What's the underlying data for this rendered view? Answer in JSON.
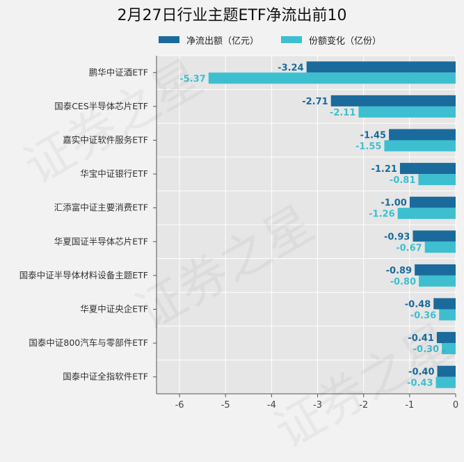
{
  "chart_data": {
    "type": "bar",
    "orientation": "horizontal",
    "title": "2月27日行业主题ETF净流出前10",
    "categories": [
      "鹏华中证酒ETF",
      "国泰CES半导体芯片ETF",
      "嘉实中证软件服务ETF",
      "华宝中证银行ETF",
      "汇添富中证主要消费ETF",
      "华夏国证半导体芯片ETF",
      "国泰中证半导体材料设备主题ETF",
      "华夏中证央企ETF",
      "国泰中证800汽车与零部件ETF",
      "国泰中证全指软件ETF"
    ],
    "series": [
      {
        "name": "净流出额（亿元）",
        "color": "#1a6b9c",
        "values": [
          -3.24,
          -2.71,
          -1.45,
          -1.21,
          -1.0,
          -0.93,
          -0.89,
          -0.48,
          -0.41,
          -0.4
        ],
        "labels": [
          "-3.24",
          "-2.71",
          "-1.45",
          "-1.21",
          "-1.00",
          "-0.93",
          "-0.89",
          "-0.48",
          "-0.41",
          "-0.40"
        ]
      },
      {
        "name": "份额变化（亿份）",
        "color": "#3dbfcf",
        "values": [
          -5.37,
          -2.11,
          -1.55,
          -0.81,
          -1.26,
          -0.67,
          -0.8,
          -0.36,
          -0.3,
          -0.43
        ],
        "labels": [
          "-5.37",
          "-2.11",
          "-1.55",
          "-0.81",
          "-1.26",
          "-0.67",
          "-0.80",
          "-0.36",
          "-0.30",
          "-0.43"
        ]
      }
    ],
    "xlim": [
      -6.5,
      0
    ],
    "xticks": [
      -6,
      -5,
      -4,
      -3,
      -2,
      -1,
      0
    ],
    "xtick_labels": [
      "-6",
      "-5",
      "-4",
      "-3",
      "-2",
      "-1",
      "0"
    ],
    "grid": true,
    "legend_position": "top"
  },
  "watermark": "证券之星"
}
